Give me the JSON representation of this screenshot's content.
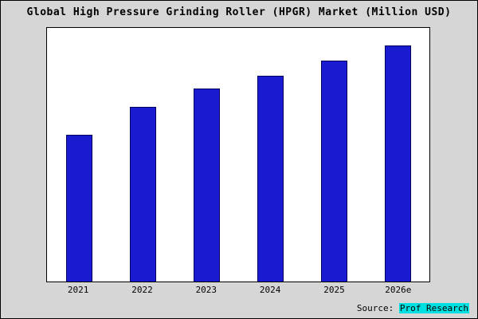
{
  "window": {
    "title": "Global High Pressure Grinding Roller (HPGR) Market (Million USD)"
  },
  "chart_data": {
    "type": "bar",
    "title": "Global High Pressure Grinding Roller (HPGR) Market (Million USD)",
    "categories": [
      "2021",
      "2022",
      "2023",
      "2024",
      "2025",
      "2026e"
    ],
    "values": [
      58,
      69,
      76,
      81,
      87,
      93
    ],
    "value_note": "y-axis has no tick labels; values estimated as percent of plot height",
    "xlabel": "",
    "ylabel": "",
    "ylim": [
      0,
      100
    ],
    "grid": false,
    "legend": false,
    "bar_color": "#1a1ad0",
    "bar_border_color": "#000060",
    "plot_background": "#ffffff",
    "outer_background": "#d6d6d6",
    "border_color": "#000000"
  },
  "source": {
    "prefix": "Source: ",
    "name": "Prof Research",
    "highlight_color": "#00e0e0"
  }
}
